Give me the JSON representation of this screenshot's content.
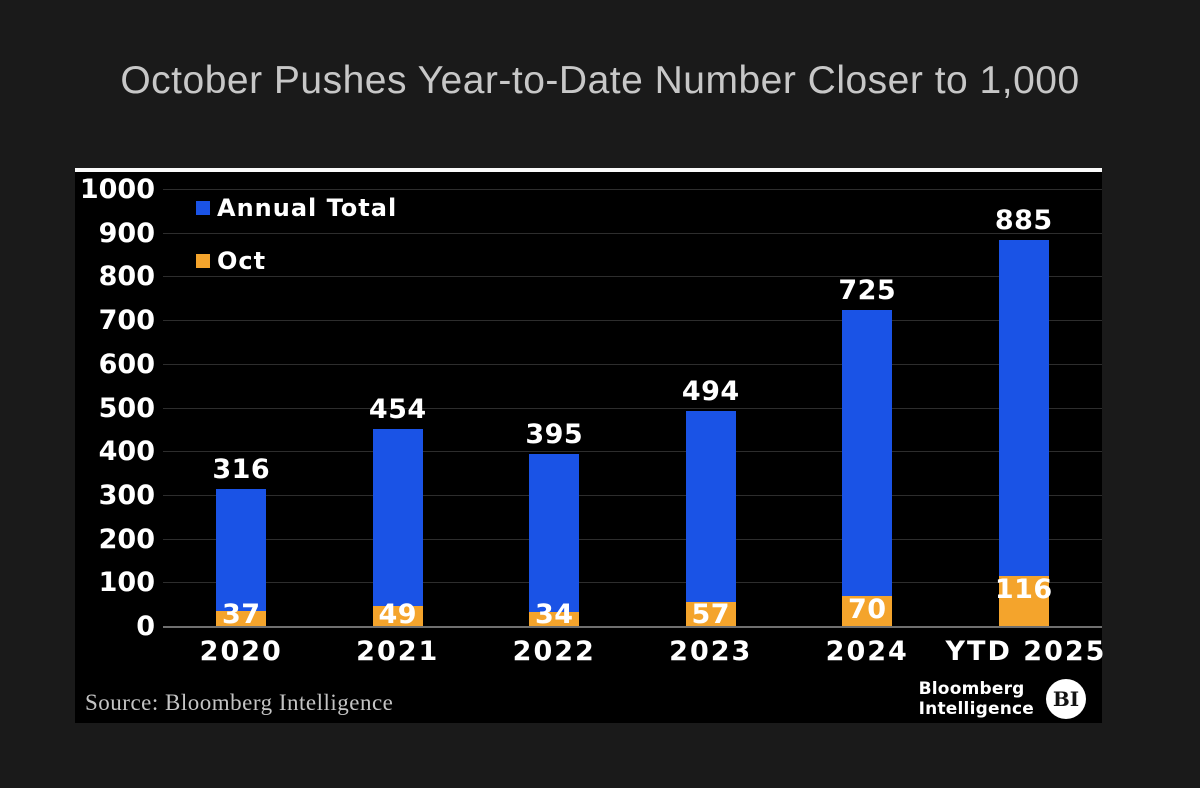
{
  "title": "October Pushes Year-to-Date Number Closer to 1,000",
  "chart_data": {
    "type": "bar",
    "stacked": true,
    "title": "October Pushes Year-to-Date Number Closer to 1,000",
    "categories": [
      "2020",
      "2021",
      "2022",
      "2023",
      "2024",
      "YTD 2025"
    ],
    "series": [
      {
        "name": "Annual Total",
        "color": "#1a53e6",
        "values": [
          316,
          454,
          395,
          494,
          725,
          885
        ]
      },
      {
        "name": "Oct",
        "color": "#f4a42c",
        "values": [
          37,
          49,
          34,
          57,
          70,
          116
        ]
      }
    ],
    "ylim": [
      0,
      1000
    ],
    "yticks": [
      0,
      100,
      200,
      300,
      400,
      500,
      600,
      700,
      800,
      900,
      1000
    ],
    "grid": true,
    "legend_position": "top-left",
    "xlabel": "",
    "ylabel": ""
  },
  "source_note": "Source: Bloomberg Intelligence",
  "logo": {
    "line1": "Bloomberg",
    "line2": "Intelligence",
    "badge": "BI"
  },
  "colors": {
    "page_background": "#1a1a1a",
    "panel_background": "#000000",
    "title_text": "#c7c7c7",
    "axis_text": "#ffffff",
    "annual_total": "#1a53e6",
    "oct": "#f4a42c"
  }
}
